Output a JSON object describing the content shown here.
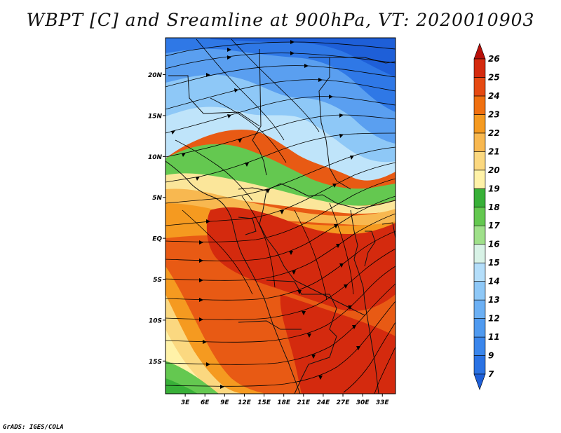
{
  "title": "WBPT [C] and Sreamline at 900hPa, VT: 2020010903",
  "footer": "GrADS: IGES/COLA",
  "map": {
    "lat_labels": [
      "20N",
      "15N",
      "10N",
      "5N",
      "EQ",
      "5S",
      "10S",
      "15S"
    ],
    "lon_labels": [
      "3E",
      "6E",
      "9E",
      "12E",
      "15E",
      "18E",
      "21E",
      "24E",
      "27E",
      "30E",
      "33E"
    ],
    "lat_values": [
      20,
      15,
      10,
      5,
      0,
      -5,
      -10,
      -15
    ],
    "lon_values": [
      3,
      6,
      9,
      12,
      15,
      18,
      21,
      24,
      27,
      30,
      33
    ],
    "lon_range": [
      0,
      35
    ],
    "lat_range": [
      -19,
      24.5
    ]
  },
  "colorbar": {
    "labels": [
      "7",
      "9",
      "11",
      "12",
      "13",
      "14",
      "15",
      "16",
      "17",
      "18",
      "19",
      "20",
      "21",
      "22",
      "23",
      "24",
      "25",
      "26"
    ],
    "colors": [
      "#1e5fd8",
      "#2a72e4",
      "#3a86ec",
      "#4f9af0",
      "#6cb0f4",
      "#8ec8f7",
      "#b4defa",
      "#d8f2e6",
      "#9fe08a",
      "#64c850",
      "#38b038",
      "#fff2a8",
      "#fbd880",
      "#f8b850",
      "#f59a20",
      "#f07010",
      "#e64a12",
      "#d42a0e",
      "#b8100a"
    ]
  }
}
